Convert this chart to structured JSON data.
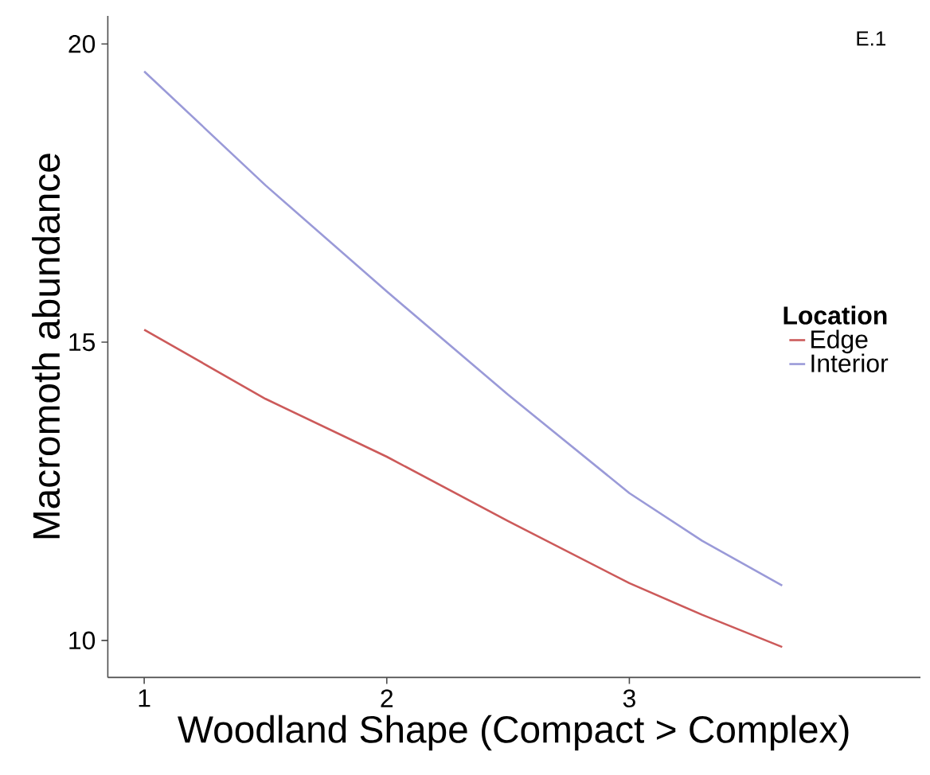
{
  "chart_data": {
    "type": "line",
    "xlabel": "Woodland Shape (Compact > Complex)",
    "ylabel": "Macromoth abundance",
    "legend_title": "Location",
    "annotations": [
      "E.1"
    ],
    "x": [
      1,
      1.5,
      2,
      2.5,
      3,
      3.3,
      3.63
    ],
    "series": [
      {
        "name": "Edge",
        "color": "#cc5a5a",
        "values": [
          15.21,
          14.05,
          13.08,
          12.0,
          10.96,
          10.43,
          9.89
        ]
      },
      {
        "name": "Interior",
        "color": "#9a9ad8",
        "values": [
          19.54,
          17.63,
          15.85,
          14.12,
          12.47,
          11.67,
          10.92
        ]
      }
    ],
    "xlim": [
      0.85,
      4.2
    ],
    "ylim": [
      9.38,
      20.47
    ],
    "xticks": [
      1,
      2,
      3
    ],
    "yticks": [
      10,
      15,
      20
    ],
    "grid": false,
    "legend": "right",
    "marker": "none",
    "line_style": "solid"
  }
}
